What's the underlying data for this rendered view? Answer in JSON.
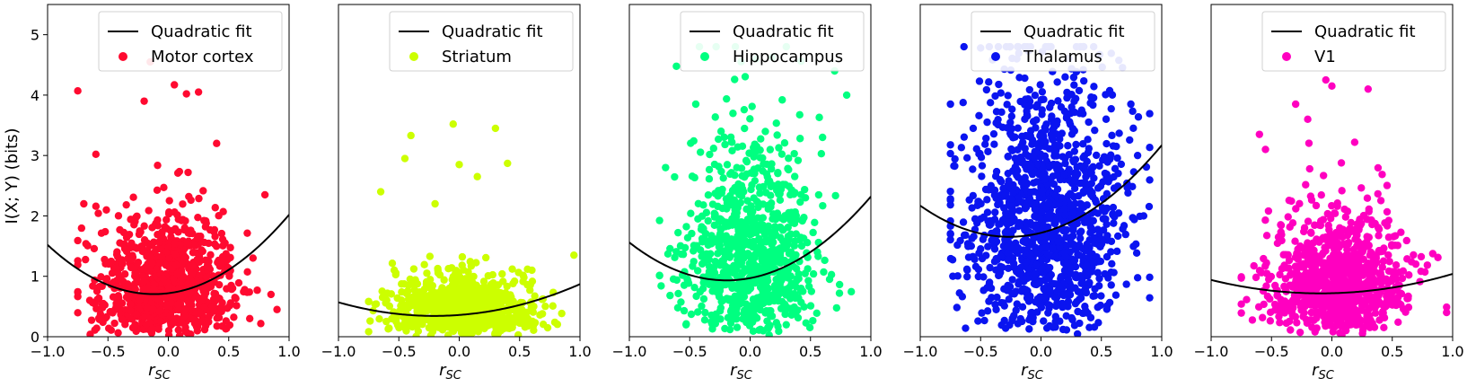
{
  "figure": {
    "ylabel": "I(X; Y) (bits)",
    "xlabel_main": "r",
    "xlabel_sub": "SC"
  },
  "chart_data": [
    {
      "type": "scatter",
      "region": "Motor cortex",
      "color": "#ff0a30",
      "fit_label": "Quadratic fit",
      "fit_coeffs": [
        0.72,
        0.25,
        1.05
      ],
      "xlim": [
        -1.0,
        1.0
      ],
      "ylim": [
        0,
        5.5
      ],
      "xticks": [
        -1.0,
        -0.5,
        0.0,
        0.5,
        1.0
      ],
      "xtick_labels": [
        "−1.0",
        "−0.5",
        "0.0",
        "0.5",
        "1.0"
      ],
      "yticks": [
        0,
        1,
        2,
        3,
        4,
        5
      ],
      "ytick_labels": [
        "0",
        "1",
        "2",
        "3",
        "4",
        "5"
      ],
      "show_yticks": true,
      "x_spread": 0.3,
      "y_scale": 0.7,
      "n_points": 900,
      "x_center": 0.0,
      "x_max": 0.9,
      "y_cap": 4.6,
      "points": [
        [
          -0.75,
          4.07
        ],
        [
          -0.15,
          4.55
        ],
        [
          0.05,
          4.17
        ],
        [
          0.15,
          4.02
        ],
        [
          -0.6,
          3.02
        ],
        [
          0.4,
          3.2
        ],
        [
          0.25,
          4.05
        ],
        [
          -0.2,
          3.9
        ],
        [
          0.8,
          2.35
        ],
        [
          -0.7,
          2.2
        ],
        [
          0.9,
          0.45
        ],
        [
          0.85,
          0.7
        ]
      ]
    },
    {
      "type": "scatter",
      "region": "Striatum",
      "color": "#ccff00",
      "fit_label": "Quadratic fit",
      "fit_coeffs": [
        0.36,
        0.15,
        0.36
      ],
      "xlim": [
        -1.0,
        1.0
      ],
      "ylim": [
        0,
        5.5
      ],
      "xticks": [
        -1.0,
        -0.5,
        0.0,
        0.5,
        1.0
      ],
      "xtick_labels": [
        "−1.0",
        "−0.5",
        "0.0",
        "0.5",
        "1.0"
      ],
      "yticks": [
        0,
        1,
        2,
        3,
        4,
        5
      ],
      "ytick_labels": [
        "0",
        "1",
        "2",
        "3",
        "4",
        "5"
      ],
      "show_yticks": false,
      "x_spread": 0.28,
      "y_scale": 0.38,
      "n_points": 800,
      "x_center": 0.05,
      "x_max": 1.0,
      "y_cap": 3.6,
      "points": [
        [
          -0.05,
          3.52
        ],
        [
          0.3,
          3.45
        ],
        [
          -0.4,
          3.33
        ],
        [
          -0.45,
          2.95
        ],
        [
          0.0,
          2.85
        ],
        [
          0.15,
          2.65
        ],
        [
          -0.65,
          2.4
        ],
        [
          0.4,
          2.87
        ],
        [
          0.95,
          1.35
        ],
        [
          -0.2,
          2.2
        ]
      ]
    },
    {
      "type": "scatter",
      "region": "Hippocampus",
      "color": "#00ff80",
      "fit_label": "Quadratic fit",
      "fit_coeffs": [
        0.97,
        0.38,
        0.97
      ],
      "xlim": [
        -1.0,
        1.0
      ],
      "ylim": [
        0,
        5.5
      ],
      "xticks": [
        -1.0,
        -0.5,
        0.0,
        0.5,
        1.0
      ],
      "xtick_labels": [
        "−1.0",
        "−0.5",
        "0.0",
        "0.5",
        "1.0"
      ],
      "yticks": [
        0,
        1,
        2,
        3,
        4,
        5
      ],
      "ytick_labels": [
        "0",
        "1",
        "2",
        "3",
        "4",
        "5"
      ],
      "show_yticks": false,
      "x_spread": 0.28,
      "y_scale": 1.2,
      "n_points": 850,
      "x_center": 0.0,
      "x_max": 0.9,
      "y_cap": 4.8,
      "points": [
        [
          0.8,
          4.0
        ],
        [
          0.3,
          4.8
        ],
        [
          -0.7,
          2.8
        ],
        [
          0.7,
          4.4
        ],
        [
          0.05,
          4.6
        ],
        [
          -0.45,
          3.85
        ],
        [
          0.6,
          3.3
        ]
      ]
    },
    {
      "type": "scatter",
      "region": "Thalamus",
      "color": "#0a14f0",
      "fit_label": "Quadratic fit",
      "fit_coeffs": [
        1.72,
        0.5,
        0.95
      ],
      "xlim": [
        -1.0,
        1.0
      ],
      "ylim": [
        0,
        5.5
      ],
      "xticks": [
        -1.0,
        -0.5,
        0.0,
        0.5,
        1.0
      ],
      "xtick_labels": [
        "−1.0",
        "−0.5",
        "0.0",
        "0.5",
        "1.0"
      ],
      "yticks": [
        0,
        1,
        2,
        3,
        4,
        5
      ],
      "ytick_labels": [
        "0",
        "1",
        "2",
        "3",
        "4",
        "5"
      ],
      "show_yticks": false,
      "x_spread": 0.33,
      "y_scale": 1.6,
      "n_points": 1200,
      "x_center": 0.05,
      "x_max": 0.9,
      "y_cap": 4.8,
      "points": [
        [
          -0.5,
          4.78
        ],
        [
          -0.2,
          4.6
        ],
        [
          0.35,
          4.42
        ],
        [
          -0.75,
          3.85
        ],
        [
          0.2,
          4.3
        ],
        [
          0.85,
          2.0
        ],
        [
          0.8,
          3.0
        ]
      ]
    },
    {
      "type": "scatter",
      "region": "V1",
      "color": "#ff00c0",
      "fit_label": "Quadratic fit",
      "fit_coeffs": [
        0.72,
        0.05,
        0.27
      ],
      "xlim": [
        -1.0,
        1.0
      ],
      "ylim": [
        0,
        5.5
      ],
      "xticks": [
        -1.0,
        -0.5,
        0.0,
        0.5,
        1.0
      ],
      "xtick_labels": [
        "−1.0",
        "−0.5",
        "0.0",
        "0.5",
        "1.0"
      ],
      "yticks": [
        0,
        1,
        2,
        3,
        4,
        5
      ],
      "ytick_labels": [
        "0",
        "1",
        "2",
        "3",
        "4",
        "5"
      ],
      "show_yticks": false,
      "x_spread": 0.28,
      "y_scale": 0.75,
      "n_points": 900,
      "x_center": 0.05,
      "x_max": 0.95,
      "y_cap": 4.3,
      "points": [
        [
          -0.05,
          4.25
        ],
        [
          0.0,
          4.15
        ],
        [
          0.3,
          4.1
        ],
        [
          -0.3,
          3.85
        ],
        [
          -0.2,
          3.6
        ],
        [
          -0.6,
          3.35
        ],
        [
          0.95,
          0.4
        ],
        [
          -0.55,
          3.1
        ]
      ]
    }
  ]
}
